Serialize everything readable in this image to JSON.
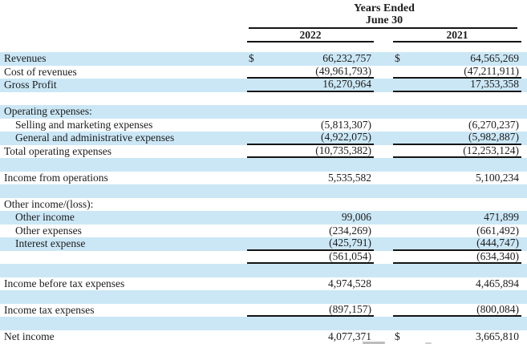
{
  "header": {
    "title_line1": "Years Ended",
    "title_line2": "June 30",
    "col_2022": "2022",
    "col_2021": "2021"
  },
  "colors": {
    "stripe_blue": "#cbe7f6",
    "rule_black": "#141414",
    "text": "#1c1c1c"
  },
  "table": {
    "rows": [
      {
        "label": "Revenues",
        "indent": false,
        "stripe": "blue",
        "underline": false,
        "dollar_2022": "$",
        "value_2022": "66,232,757",
        "dollar_2021": "$",
        "value_2021": "64,565,269"
      },
      {
        "label": "Cost of revenues",
        "indent": false,
        "stripe": "white",
        "underline": true,
        "dollar_2022": "",
        "value_2022": "(49,961,793)",
        "dollar_2021": "",
        "value_2021": "(47,211,911)"
      },
      {
        "label": "Gross Profit",
        "indent": false,
        "stripe": "blue",
        "underline": true,
        "dollar_2022": "",
        "value_2022": "16,270,964",
        "dollar_2021": "",
        "value_2021": "17,353,358"
      },
      {
        "label": "",
        "indent": false,
        "stripe": "white",
        "underline": false,
        "dollar_2022": "",
        "value_2022": "",
        "dollar_2021": "",
        "value_2021": ""
      },
      {
        "label": "Operating expenses:",
        "indent": false,
        "stripe": "blue",
        "underline": false,
        "dollar_2022": "",
        "value_2022": "",
        "dollar_2021": "",
        "value_2021": ""
      },
      {
        "label": "Selling and marketing expenses",
        "indent": true,
        "stripe": "white",
        "underline": false,
        "dollar_2022": "",
        "value_2022": "(5,813,307)",
        "dollar_2021": "",
        "value_2021": "(6,270,237)"
      },
      {
        "label": "General and administrative expenses",
        "indent": true,
        "stripe": "blue",
        "underline": true,
        "dollar_2022": "",
        "value_2022": "(4,922,075)",
        "dollar_2021": "",
        "value_2021": "(5,982,887)"
      },
      {
        "label": "Total operating expenses",
        "indent": false,
        "stripe": "white",
        "underline": true,
        "dollar_2022": "",
        "value_2022": "(10,735,382)",
        "dollar_2021": "",
        "value_2021": "(12,253,124)"
      },
      {
        "label": "",
        "indent": false,
        "stripe": "blue",
        "underline": false,
        "dollar_2022": "",
        "value_2022": "",
        "dollar_2021": "",
        "value_2021": ""
      },
      {
        "label": "Income from operations",
        "indent": false,
        "stripe": "white",
        "underline": false,
        "dollar_2022": "",
        "value_2022": "5,535,582",
        "dollar_2021": "",
        "value_2021": "5,100,234"
      },
      {
        "label": "",
        "indent": false,
        "stripe": "blue",
        "underline": false,
        "dollar_2022": "",
        "value_2022": "",
        "dollar_2021": "",
        "value_2021": ""
      },
      {
        "label": "Other income/(loss):",
        "indent": false,
        "stripe": "white",
        "underline": false,
        "dollar_2022": "",
        "value_2022": "",
        "dollar_2021": "",
        "value_2021": ""
      },
      {
        "label": "Other income",
        "indent": true,
        "stripe": "blue",
        "underline": false,
        "dollar_2022": "",
        "value_2022": "99,006",
        "dollar_2021": "",
        "value_2021": "471,899"
      },
      {
        "label": "Other expenses",
        "indent": true,
        "stripe": "white",
        "underline": false,
        "dollar_2022": "",
        "value_2022": "(234,269)",
        "dollar_2021": "",
        "value_2021": "(661,492)"
      },
      {
        "label": "Interest expense",
        "indent": true,
        "stripe": "blue",
        "underline": true,
        "dollar_2022": "",
        "value_2022": "(425,791)",
        "dollar_2021": "",
        "value_2021": "(444,747)"
      },
      {
        "label": "",
        "indent": false,
        "stripe": "white",
        "underline": true,
        "dollar_2022": "",
        "value_2022": "(561,054)",
        "dollar_2021": "",
        "value_2021": "(634,340)"
      },
      {
        "label": "",
        "indent": false,
        "stripe": "blue",
        "underline": false,
        "dollar_2022": "",
        "value_2022": "",
        "dollar_2021": "",
        "value_2021": ""
      },
      {
        "label": "Income before tax expenses",
        "indent": false,
        "stripe": "white",
        "underline": false,
        "dollar_2022": "",
        "value_2022": "4,974,528",
        "dollar_2021": "",
        "value_2021": "4,465,894"
      },
      {
        "label": "",
        "indent": false,
        "stripe": "blue",
        "underline": false,
        "dollar_2022": "",
        "value_2022": "",
        "dollar_2021": "",
        "value_2021": ""
      },
      {
        "label": "Income tax expenses",
        "indent": false,
        "stripe": "white",
        "underline": true,
        "dollar_2022": "",
        "value_2022": "(897,157)",
        "dollar_2021": "",
        "value_2021": "(800,084)"
      },
      {
        "label": "",
        "indent": false,
        "stripe": "blue",
        "underline": false,
        "dollar_2022": "",
        "value_2022": "",
        "dollar_2021": "",
        "value_2021": ""
      },
      {
        "label": "Net income",
        "indent": false,
        "stripe": "white",
        "underline": false,
        "dollar_2022": "",
        "value_2022": "4,077,371",
        "dollar_2021": "$",
        "value_2021": "3,665,810"
      }
    ]
  }
}
